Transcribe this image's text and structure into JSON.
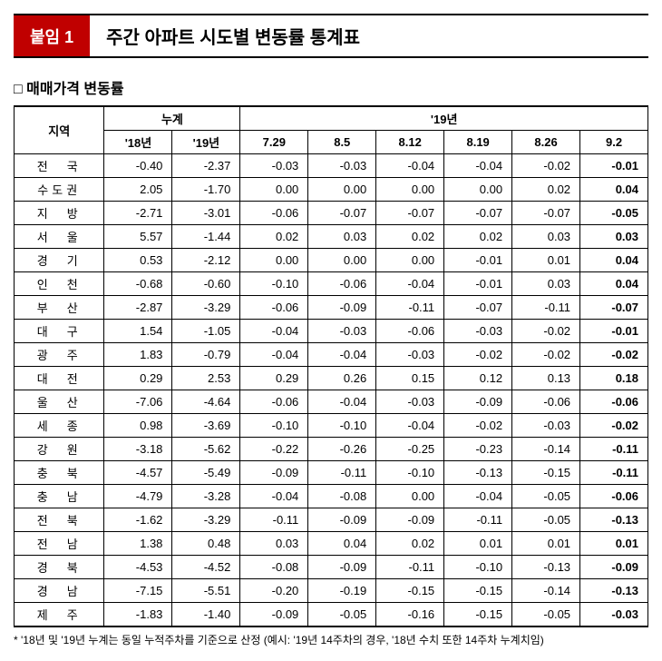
{
  "header": {
    "badge": "붙임 1",
    "title": "주간 아파트 시도별 변동률 통계표"
  },
  "subtitle": "□ 매매가격 변동률",
  "table": {
    "col_region": "지역",
    "col_group_cum": "누계",
    "col_group_year": "'19년",
    "cols_cum": [
      "'18년",
      "'19년"
    ],
    "cols_week": [
      "7.29",
      "8.5",
      "8.12",
      "8.19",
      "8.26",
      "9.2"
    ],
    "rows": [
      {
        "region": "전　국",
        "c18": "-0.40",
        "c19": "-2.37",
        "w": [
          "-0.03",
          "-0.03",
          "-0.04",
          "-0.04",
          "-0.02",
          "-0.01"
        ]
      },
      {
        "region": "수도권",
        "c18": "2.05",
        "c19": "-1.70",
        "w": [
          "0.00",
          "0.00",
          "0.00",
          "0.00",
          "0.02",
          "0.04"
        ]
      },
      {
        "region": "지　방",
        "c18": "-2.71",
        "c19": "-3.01",
        "w": [
          "-0.06",
          "-0.07",
          "-0.07",
          "-0.07",
          "-0.07",
          "-0.05"
        ]
      },
      {
        "region": "서　울",
        "c18": "5.57",
        "c19": "-1.44",
        "w": [
          "0.02",
          "0.03",
          "0.02",
          "0.02",
          "0.03",
          "0.03"
        ]
      },
      {
        "region": "경　기",
        "c18": "0.53",
        "c19": "-2.12",
        "w": [
          "0.00",
          "0.00",
          "0.00",
          "-0.01",
          "0.01",
          "0.04"
        ]
      },
      {
        "region": "인　천",
        "c18": "-0.68",
        "c19": "-0.60",
        "w": [
          "-0.10",
          "-0.06",
          "-0.04",
          "-0.01",
          "0.03",
          "0.04"
        ]
      },
      {
        "region": "부　산",
        "c18": "-2.87",
        "c19": "-3.29",
        "w": [
          "-0.06",
          "-0.09",
          "-0.11",
          "-0.07",
          "-0.11",
          "-0.07"
        ]
      },
      {
        "region": "대　구",
        "c18": "1.54",
        "c19": "-1.05",
        "w": [
          "-0.04",
          "-0.03",
          "-0.06",
          "-0.03",
          "-0.02",
          "-0.01"
        ]
      },
      {
        "region": "광　주",
        "c18": "1.83",
        "c19": "-0.79",
        "w": [
          "-0.04",
          "-0.04",
          "-0.03",
          "-0.02",
          "-0.02",
          "-0.02"
        ]
      },
      {
        "region": "대　전",
        "c18": "0.29",
        "c19": "2.53",
        "w": [
          "0.29",
          "0.26",
          "0.15",
          "0.12",
          "0.13",
          "0.18"
        ]
      },
      {
        "region": "울　산",
        "c18": "-7.06",
        "c19": "-4.64",
        "w": [
          "-0.06",
          "-0.04",
          "-0.03",
          "-0.09",
          "-0.06",
          "-0.06"
        ]
      },
      {
        "region": "세　종",
        "c18": "0.98",
        "c19": "-3.69",
        "w": [
          "-0.10",
          "-0.10",
          "-0.04",
          "-0.02",
          "-0.03",
          "-0.02"
        ]
      },
      {
        "region": "강　원",
        "c18": "-3.18",
        "c19": "-5.62",
        "w": [
          "-0.22",
          "-0.26",
          "-0.25",
          "-0.23",
          "-0.14",
          "-0.11"
        ]
      },
      {
        "region": "충　북",
        "c18": "-4.57",
        "c19": "-5.49",
        "w": [
          "-0.09",
          "-0.11",
          "-0.10",
          "-0.13",
          "-0.15",
          "-0.11"
        ]
      },
      {
        "region": "충　남",
        "c18": "-4.79",
        "c19": "-3.28",
        "w": [
          "-0.04",
          "-0.08",
          "0.00",
          "-0.04",
          "-0.05",
          "-0.06"
        ]
      },
      {
        "region": "전　북",
        "c18": "-1.62",
        "c19": "-3.29",
        "w": [
          "-0.11",
          "-0.09",
          "-0.09",
          "-0.11",
          "-0.05",
          "-0.13"
        ]
      },
      {
        "region": "전　남",
        "c18": "1.38",
        "c19": "0.48",
        "w": [
          "0.03",
          "0.04",
          "0.02",
          "0.01",
          "0.01",
          "0.01"
        ]
      },
      {
        "region": "경　북",
        "c18": "-4.53",
        "c19": "-4.52",
        "w": [
          "-0.08",
          "-0.09",
          "-0.11",
          "-0.10",
          "-0.13",
          "-0.09"
        ]
      },
      {
        "region": "경　남",
        "c18": "-7.15",
        "c19": "-5.51",
        "w": [
          "-0.20",
          "-0.19",
          "-0.15",
          "-0.15",
          "-0.14",
          "-0.13"
        ]
      },
      {
        "region": "제　주",
        "c18": "-1.83",
        "c19": "-1.40",
        "w": [
          "-0.09",
          "-0.05",
          "-0.16",
          "-0.15",
          "-0.05",
          "-0.03"
        ]
      }
    ]
  },
  "footnote": "* '18년 및 '19년 누계는 동일 누적주차를 기준으로 산정 (예시: '19년  14주차의 경우, '18년 수치 또한 14주차 누계치임)"
}
